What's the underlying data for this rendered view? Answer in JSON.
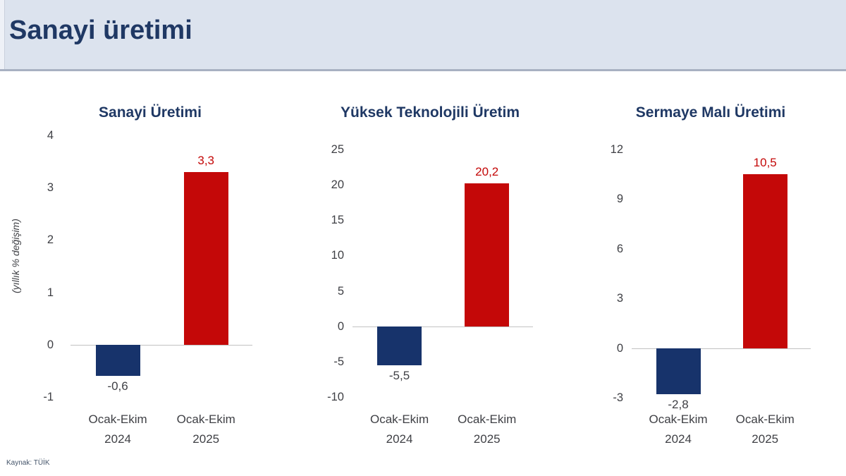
{
  "header": {
    "title": "Sanayi üretimi"
  },
  "source": "Kaynak: TÜİK",
  "colors": {
    "navy_bar": "#17336b",
    "red_bar": "#c40808",
    "title_navy": "#1f3864",
    "tick_text": "#3f4045",
    "axis_line": "#c2c2c2",
    "header_bg": "#dce3ee",
    "header_border": "#a8b1c2"
  },
  "chart_data": [
    {
      "type": "bar",
      "title": "Sanayi Üretimi",
      "ylabel": "(yıllık % değişim)",
      "categories": [
        [
          "Ocak-Ekim",
          "2024"
        ],
        [
          "Ocak-Ekim",
          "2025"
        ]
      ],
      "values": [
        -0.6,
        3.3
      ],
      "value_labels": [
        "-0,6",
        "3,3"
      ],
      "bar_colors": [
        "#17336b",
        "#c40808"
      ],
      "label_colors": [
        "#3f4045",
        "#c40808"
      ],
      "ticks": [
        4,
        3,
        2,
        1,
        0,
        -1
      ],
      "ylim": [
        -1,
        4
      ],
      "grid": false,
      "legend": null
    },
    {
      "type": "bar",
      "title": "Yüksek Teknolojili Üretim",
      "ylabel": "",
      "categories": [
        [
          "Ocak-Ekim",
          "2024"
        ],
        [
          "Ocak-Ekim",
          "2025"
        ]
      ],
      "values": [
        -5.5,
        20.2
      ],
      "value_labels": [
        "-5,5",
        "20,2"
      ],
      "bar_colors": [
        "#17336b",
        "#c40808"
      ],
      "label_colors": [
        "#3f4045",
        "#c40808"
      ],
      "ticks": [
        25,
        20,
        15,
        10,
        5,
        0,
        -5,
        -10
      ],
      "ylim": [
        -10,
        25
      ],
      "grid": false,
      "legend": null
    },
    {
      "type": "bar",
      "title": "Sermaye Malı Üretimi",
      "ylabel": "",
      "categories": [
        [
          "Ocak-Ekim",
          "2024"
        ],
        [
          "Ocak-Ekim",
          "2025"
        ]
      ],
      "values": [
        -2.8,
        10.5
      ],
      "value_labels": [
        "-2,8",
        "10,5"
      ],
      "bar_colors": [
        "#17336b",
        "#c40808"
      ],
      "label_colors": [
        "#3f4045",
        "#c40808"
      ],
      "ticks": [
        12,
        9,
        6,
        3,
        0,
        -3
      ],
      "ylim": [
        -3,
        12
      ],
      "grid": false,
      "legend": null
    }
  ]
}
